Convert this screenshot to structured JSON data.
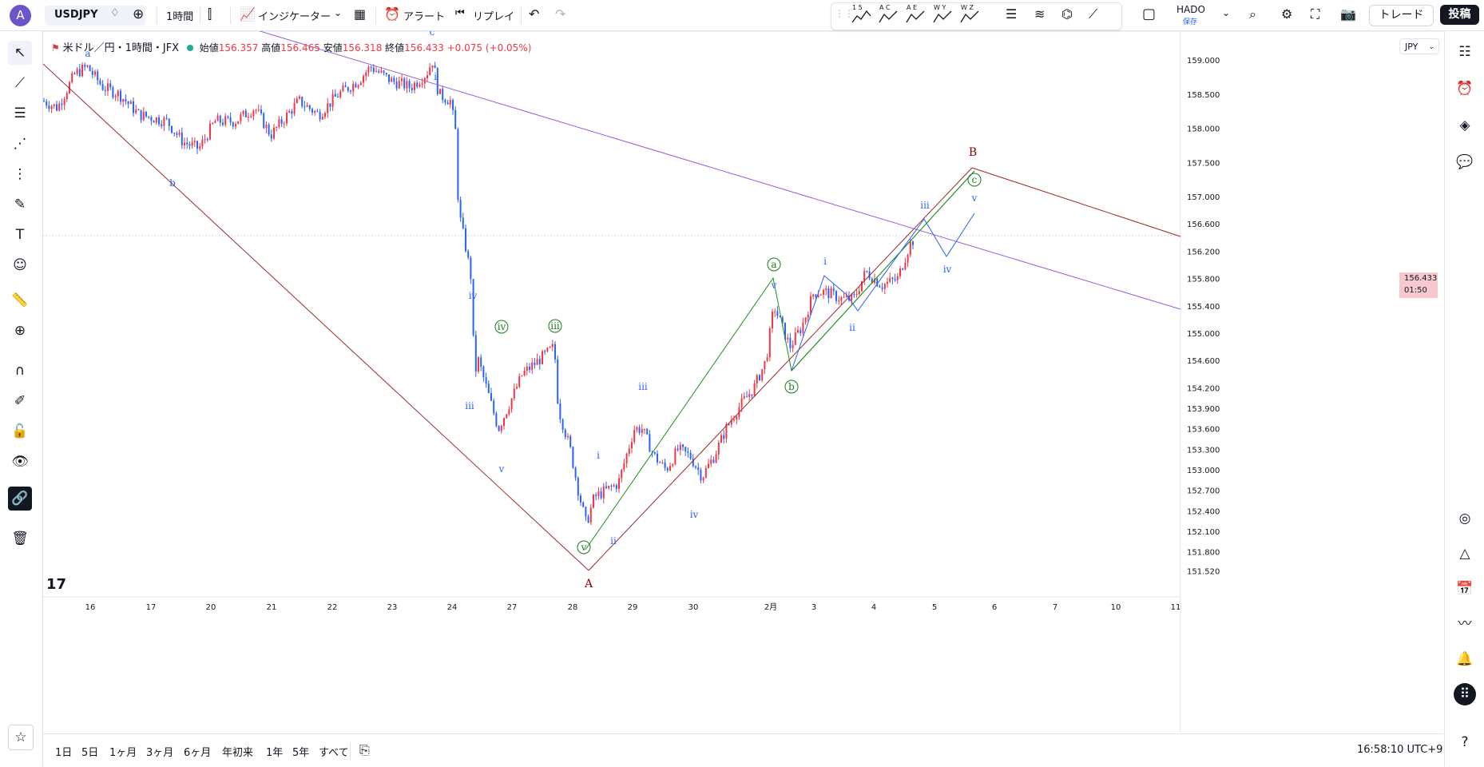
{
  "header": {
    "avatar_letter": "A",
    "symbol": "USDJPY",
    "interval": "1時間",
    "indicators": "インジケーター",
    "alert": "アラート",
    "replay": "リプレイ",
    "layout_name": "HADO",
    "layout_sub": "保存",
    "trade": "トレード",
    "post": "投稿"
  },
  "draw_tools": [
    "1 5",
    "A C",
    "A E",
    "W Y",
    "W Z"
  ],
  "legend": {
    "title": "米ドル／円・1時間・JFX",
    "open_label": "始値",
    "open": "156.357",
    "high_label": "高値",
    "high": "156.465",
    "low_label": "安値",
    "low": "156.318",
    "close_label": "終値",
    "close": "156.433",
    "change": "+0.075 (+0.05%)"
  },
  "currency": "JPY",
  "current_price": "156.433",
  "countdown": "01:50",
  "price_axis": [
    "159.000",
    "158.500",
    "158.000",
    "157.500",
    "157.000",
    "156.600",
    "156.200",
    "155.800",
    "155.400",
    "155.000",
    "154.600",
    "154.200",
    "153.900",
    "153.600",
    "153.300",
    "153.000",
    "152.700",
    "152.400",
    "152.100",
    "151.800",
    "151.520"
  ],
  "time_axis": [
    "16",
    "17",
    "20",
    "21",
    "22",
    "23",
    "24",
    "27",
    "28",
    "29",
    "30",
    "2月",
    "3",
    "4",
    "5",
    "6",
    "7",
    "10",
    "11"
  ],
  "timeframes": [
    "1日",
    "5日",
    "1ヶ月",
    "3ヶ月",
    "6ヶ月",
    "年初来",
    "1年",
    "5年",
    "すべて"
  ],
  "clock": "16:58:10 UTC+9",
  "colors": {
    "up": "#f23645",
    "down": "#2962ff",
    "wave_blue": "#2962ff",
    "wave_green": "#1b7a1b",
    "wave_red": "#8b0000",
    "channel_green": "#1f8f1f",
    "line_purple": "#9c5cd4",
    "line_red": "#9b2a2a"
  },
  "chart_data": {
    "type": "candlestick",
    "title": "米ドル／円・1時間・JFX",
    "ylim": [
      151.45,
      159.15
    ],
    "wave_labels": [
      "a",
      "b",
      "c",
      "i",
      "iv",
      "iii",
      "v",
      "iv",
      "iii",
      "v",
      "i",
      "ii",
      "iii",
      "iv",
      "a",
      "v",
      "i",
      "ii",
      "b",
      "iii",
      "c",
      "v",
      "iv",
      "B",
      "A"
    ]
  }
}
